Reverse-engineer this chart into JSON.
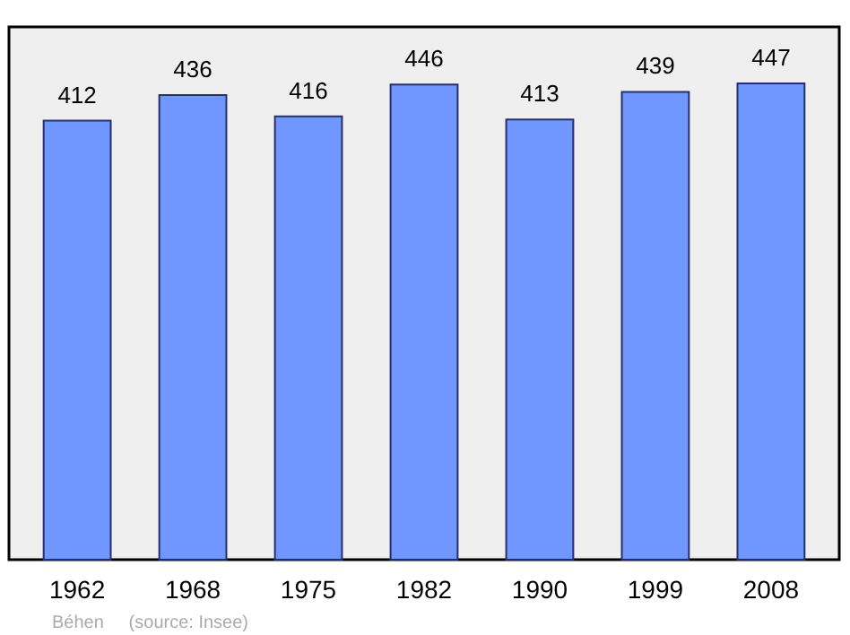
{
  "chart_data": {
    "type": "bar",
    "categories": [
      "1962",
      "1968",
      "1975",
      "1982",
      "1990",
      "1999",
      "2008"
    ],
    "values": [
      412,
      436,
      416,
      446,
      413,
      439,
      447
    ],
    "color": "#7097ff",
    "ylim": [
      0,
      500
    ],
    "data_labels": true,
    "annotations": [
      "Béhen",
      "(source: Insee)"
    ]
  }
}
